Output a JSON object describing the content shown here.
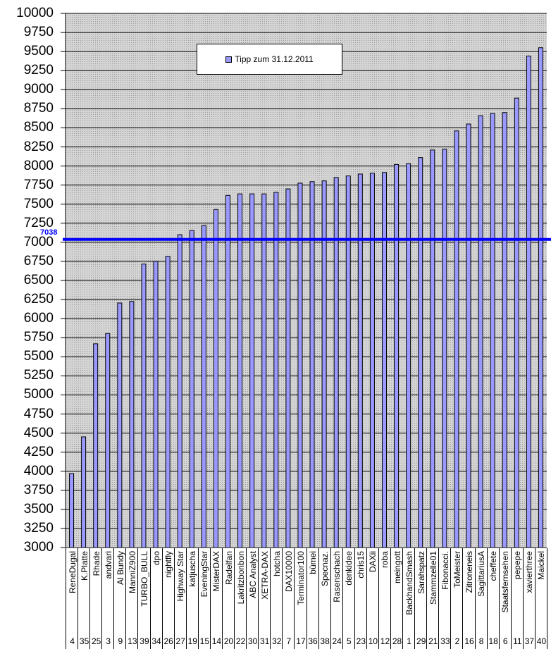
{
  "chart_data": {
    "type": "bar",
    "title": "",
    "xlabel": "",
    "ylabel": "",
    "ylim": [
      3000,
      10000
    ],
    "yticks": [
      3000,
      3250,
      3500,
      3750,
      4000,
      4250,
      4500,
      4750,
      5000,
      5250,
      5500,
      5750,
      6000,
      6250,
      6500,
      6750,
      7000,
      7250,
      7500,
      7750,
      8000,
      8250,
      8500,
      8750,
      9000,
      9250,
      9500,
      9750,
      10000
    ],
    "grid": true,
    "legend": {
      "position": "upper-center-left",
      "entries": [
        "Tipp  zum 31.12.2011"
      ]
    },
    "categories": [
      "ReneDugal",
      "K.Platte",
      "Rhade",
      "andvari",
      "Al Bundy",
      "ManniZ900",
      "TURBO_BULL",
      "dpo",
      "nightfly",
      "Highway Star",
      "katjuscha",
      "EveningStar",
      "MisterDAX",
      "Radelfan",
      "Lakritzbonbon",
      "ABC Analyst",
      "XETRA-DAX",
      "hotcha",
      "DAX10000",
      "Terminator100",
      "bümei",
      "Specnaz.",
      "Rasenschach",
      "denkidee",
      "chris15",
      "DAXii",
      "roba",
      "meingott",
      "BackhandSmash",
      "Sarahspatz",
      "Stammzelle01",
      "Fibonacci.",
      "ToMeister",
      "Zitroneneis",
      "SagittariusA",
      "cheffete",
      "Staatsfernsehen",
      "pepepe",
      "xavierthree",
      "Maickel"
    ],
    "category_numbers": [
      "4",
      "35",
      "25",
      "3",
      "9",
      "13",
      "39",
      "34",
      "26",
      "27",
      "19",
      "15",
      "14",
      "20",
      "22",
      "30",
      "31",
      "32",
      "7",
      "17",
      "36",
      "38",
      "24",
      "5",
      "23",
      "10",
      "12",
      "28",
      "1",
      "29",
      "21",
      "33",
      "2",
      "16",
      "8",
      "18",
      "6",
      "11",
      "37",
      "40"
    ],
    "series": [
      {
        "name": "Tipp  zum 31.12.2011",
        "color": "#9999ff",
        "values": [
          3970,
          4450,
          5670,
          5805,
          6205,
          6225,
          6715,
          6750,
          6815,
          7100,
          7155,
          7220,
          7430,
          7615,
          7635,
          7635,
          7635,
          7655,
          7700,
          7775,
          7795,
          7805,
          7850,
          7870,
          7895,
          7905,
          7915,
          8020,
          8030,
          8110,
          8210,
          8220,
          8460,
          8550,
          8660,
          8690,
          8700,
          8890,
          9440,
          9550
        ]
      }
    ],
    "annotations": [
      {
        "type": "hline",
        "y": 7038,
        "label": "7038",
        "color": "#0000ff"
      }
    ]
  },
  "legend_label": "Tipp  zum 31.12.2011",
  "reference_label": "7038",
  "colors": {
    "bar": "#9999ff",
    "plot_bg": "#c0c0c0",
    "reference_line": "#0000ff"
  }
}
